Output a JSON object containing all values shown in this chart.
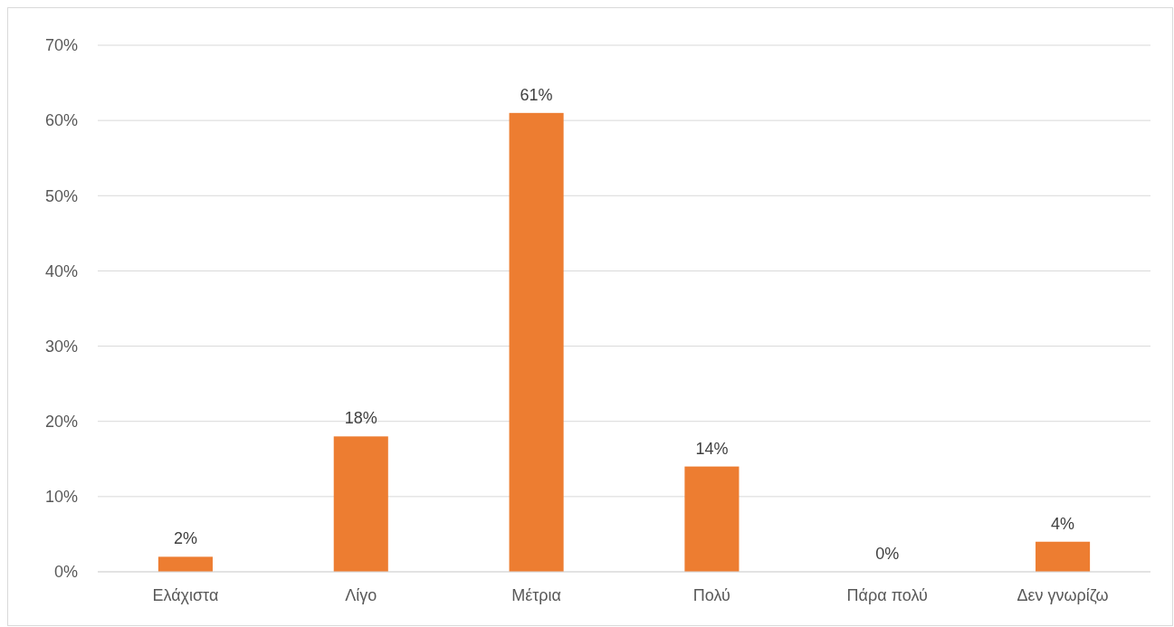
{
  "chart_data": {
    "type": "bar",
    "categories": [
      "Ελάχιστα",
      "Λίγο",
      "Μέτρια",
      "Πολύ",
      "Πάρα πολύ",
      "Δεν γνωρίζω"
    ],
    "values": [
      2,
      18,
      61,
      14,
      0,
      4
    ],
    "value_labels": [
      "2%",
      "18%",
      "61%",
      "14%",
      "0%",
      "4%"
    ],
    "color": "#ed7d31",
    "ylim": [
      0,
      70
    ],
    "yticks": [
      {
        "value": 0,
        "label": "0%"
      },
      {
        "value": 10,
        "label": "10%"
      },
      {
        "value": 20,
        "label": "20%"
      },
      {
        "value": 30,
        "label": "30%"
      },
      {
        "value": 40,
        "label": "40%"
      },
      {
        "value": 50,
        "label": "50%"
      },
      {
        "value": 60,
        "label": "60%"
      },
      {
        "value": 70,
        "label": "70%"
      }
    ],
    "grid": "y"
  }
}
